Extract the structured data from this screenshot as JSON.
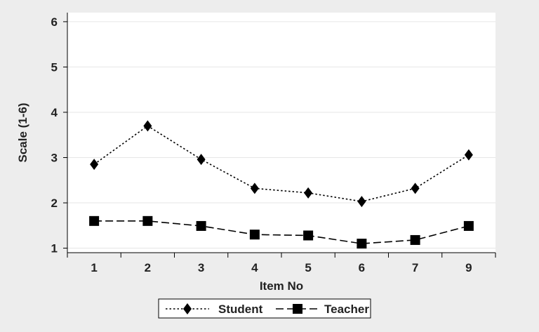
{
  "chart_data": {
    "type": "line",
    "categories": [
      "1",
      "2",
      "3",
      "4",
      "5",
      "6",
      "7",
      "9"
    ],
    "xlabel": "Item No",
    "ylabel": "Scale (1-6)",
    "yticks": [
      "1",
      "2",
      "3",
      "4",
      "5",
      "6"
    ],
    "ylim": [
      0.9,
      6.2
    ],
    "grid": true,
    "legend_position": "bottom",
    "series": [
      {
        "name": "Student",
        "values": [
          2.85,
          3.7,
          2.96,
          2.32,
          2.22,
          2.03,
          2.32,
          3.06
        ],
        "marker": "diamond",
        "line_style": "dotted",
        "color": "#000000"
      },
      {
        "name": "Teacher",
        "values": [
          1.6,
          1.6,
          1.49,
          1.3,
          1.28,
          1.1,
          1.18,
          1.49
        ],
        "marker": "square",
        "line_style": "dashed",
        "color": "#000000"
      }
    ],
    "colors": {
      "background": "#ededed",
      "plot_area": "#ffffff",
      "grid": "#e6e6e6"
    }
  }
}
